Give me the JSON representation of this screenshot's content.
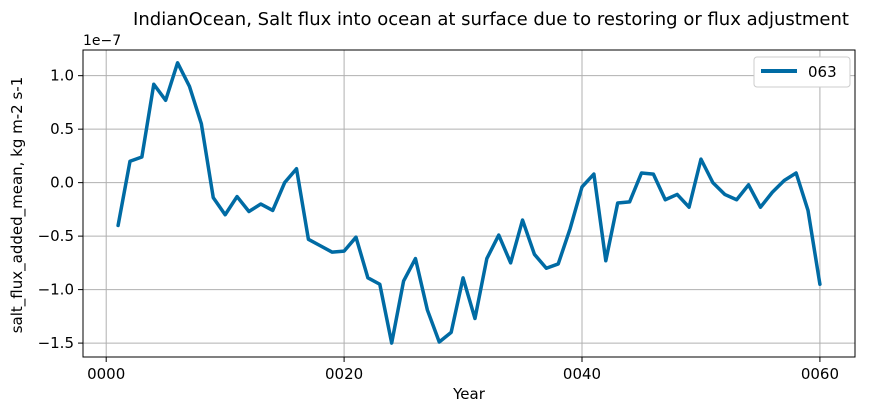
{
  "chart_data": {
    "type": "line",
    "title": "IndianOcean, Salt flux into ocean at surface due to restoring or flux adjustment",
    "xlabel": "Year",
    "ylabel": "salt_flux_added_mean, kg m-2 s-1",
    "y_multiplier_label": "1e−7",
    "xlim": [
      -1.95,
      62.95
    ],
    "ylim": [
      -1.63,
      1.24
    ],
    "xticks": [
      0,
      20,
      40,
      60
    ],
    "xtick_labels": [
      "0000",
      "0020",
      "0040",
      "0060"
    ],
    "yticks": [
      -1.5,
      -1.0,
      -0.5,
      0.0,
      0.5,
      1.0
    ],
    "ytick_labels": [
      "−1.5",
      "−1.0",
      "−0.5",
      "0.0",
      "0.5",
      "1.0"
    ],
    "grid": true,
    "legend_position": "top-right",
    "series": [
      {
        "name": "063",
        "color": "#006ba4",
        "x": [
          1,
          2,
          3,
          4,
          5,
          6,
          7,
          8,
          9,
          10,
          11,
          12,
          13,
          14,
          15,
          16,
          17,
          18,
          19,
          20,
          21,
          22,
          23,
          24,
          25,
          26,
          27,
          28,
          29,
          30,
          31,
          32,
          33,
          34,
          35,
          36,
          37,
          38,
          39,
          40,
          41,
          42,
          43,
          44,
          45,
          46,
          47,
          48,
          49,
          50,
          51,
          52,
          53,
          54,
          55,
          56,
          57,
          58,
          59,
          60
        ],
        "y": [
          -0.4,
          0.2,
          0.24,
          0.92,
          0.77,
          1.12,
          0.9,
          0.55,
          -0.14,
          -0.3,
          -0.13,
          -0.27,
          -0.2,
          -0.26,
          0.0,
          0.13,
          -0.53,
          -0.59,
          -0.65,
          -0.64,
          -0.51,
          -0.89,
          -0.95,
          -1.5,
          -0.92,
          -0.71,
          -1.19,
          -1.49,
          -1.4,
          -0.89,
          -1.27,
          -0.71,
          -0.49,
          -0.75,
          -0.35,
          -0.67,
          -0.8,
          -0.76,
          -0.43,
          -0.04,
          0.08,
          -0.73,
          -0.19,
          -0.18,
          0.09,
          0.08,
          -0.16,
          -0.11,
          -0.23,
          0.22,
          0.0,
          -0.11,
          -0.16,
          -0.02,
          -0.23,
          -0.09,
          0.02,
          0.09,
          -0.26,
          -0.95
        ]
      }
    ]
  }
}
